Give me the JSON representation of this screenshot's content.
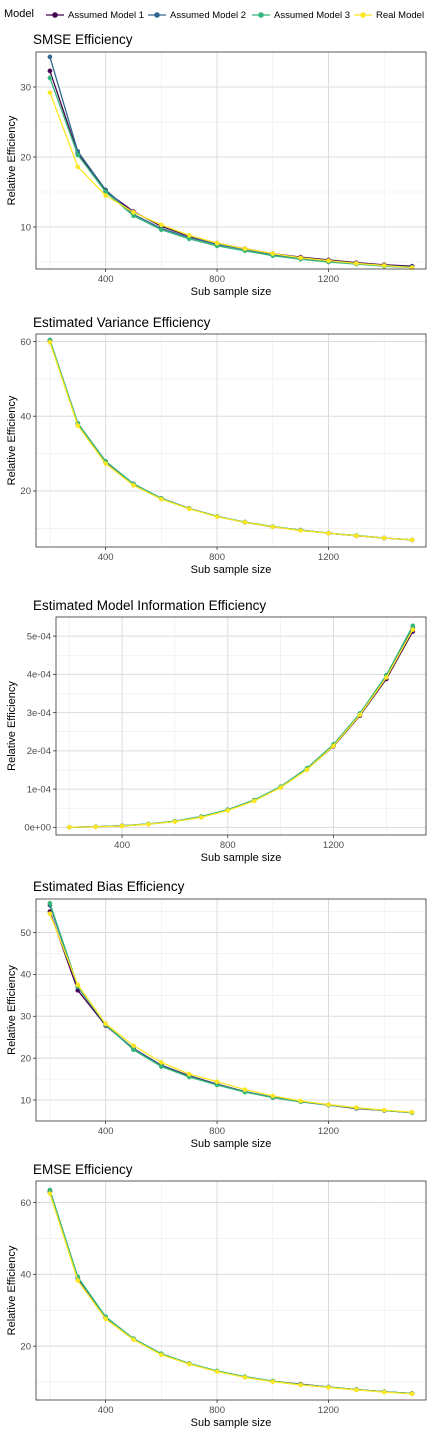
{
  "legend": {
    "title": "Model",
    "items": [
      {
        "label": "Assumed Model 1",
        "color": "#440154"
      },
      {
        "label": "Assumed Model 2",
        "color": "#31688e"
      },
      {
        "label": "Assumed Model 3",
        "color": "#35b779"
      },
      {
        "label": "Real Model",
        "color": "#fde725"
      }
    ]
  },
  "chart_data": [
    {
      "type": "line",
      "title": "SMSE Efficiency",
      "xlabel": "Sub sample size",
      "ylabel": "Relative Efficiency",
      "xlim": [
        150,
        1550
      ],
      "ylim": [
        4,
        35
      ],
      "x_ticks": [
        400,
        800,
        1200
      ],
      "y_ticks": [
        10,
        20,
        30
      ],
      "x_tick_labels": [
        "400",
        "800",
        "1200"
      ],
      "y_tick_labels": [
        "10",
        "20",
        "30"
      ],
      "grid": true,
      "x": [
        200,
        300,
        400,
        500,
        600,
        700,
        800,
        900,
        1000,
        1100,
        1200,
        1300,
        1400,
        1500
      ],
      "series": [
        {
          "name": "Assumed Model 1",
          "values": [
            32.3,
            20.5,
            15.1,
            12.2,
            10.1,
            8.7,
            7.7,
            6.9,
            6.2,
            5.7,
            5.3,
            4.9,
            4.6,
            4.4
          ]
        },
        {
          "name": "Assumed Model 2",
          "values": [
            34.3,
            20.8,
            15.3,
            11.8,
            9.8,
            8.5,
            7.5,
            6.8,
            6.0,
            5.5,
            5.1,
            4.8,
            4.5,
            4.3
          ]
        },
        {
          "name": "Assumed Model 3",
          "values": [
            31.3,
            20.3,
            15.0,
            11.6,
            9.6,
            8.3,
            7.3,
            6.6,
            5.9,
            5.4,
            5.0,
            4.7,
            4.4,
            4.2
          ]
        },
        {
          "name": "Real Model",
          "values": [
            29.2,
            18.6,
            14.5,
            12.1,
            10.3,
            8.8,
            7.7,
            6.9,
            6.2,
            5.6,
            5.2,
            4.8,
            4.5,
            4.2
          ]
        }
      ]
    },
    {
      "type": "line",
      "title": "Estimated Variance Efficiency",
      "xlabel": "Sub sample size",
      "ylabel": "Relative Efficiency",
      "xlim": [
        150,
        1550
      ],
      "ylim": [
        5,
        62
      ],
      "x_ticks": [
        400,
        800,
        1200
      ],
      "y_ticks": [
        20,
        40,
        60
      ],
      "x_tick_labels": [
        "400",
        "800",
        "1200"
      ],
      "y_tick_labels": [
        "20",
        "40",
        "60"
      ],
      "grid": true,
      "x": [
        200,
        300,
        400,
        500,
        600,
        700,
        800,
        900,
        1000,
        1100,
        1200,
        1300,
        1400,
        1500
      ],
      "series": [
        {
          "name": "Assumed Model 1",
          "values": [
            60.2,
            38.0,
            27.8,
            21.8,
            18.0,
            15.3,
            13.2,
            11.6,
            10.4,
            9.5,
            8.7,
            8.0,
            7.4,
            6.9
          ]
        },
        {
          "name": "Assumed Model 2",
          "values": [
            60.3,
            38.1,
            27.9,
            21.9,
            18.0,
            15.3,
            13.2,
            11.6,
            10.4,
            9.5,
            8.7,
            8.0,
            7.4,
            6.9
          ]
        },
        {
          "name": "Assumed Model 3",
          "values": [
            60.4,
            38.1,
            27.9,
            21.9,
            18.0,
            15.3,
            13.2,
            11.7,
            10.5,
            9.5,
            8.7,
            8.1,
            7.4,
            6.9
          ]
        },
        {
          "name": "Real Model",
          "values": [
            59.8,
            37.5,
            27.3,
            21.5,
            17.8,
            15.2,
            13.1,
            11.6,
            10.4,
            9.4,
            8.7,
            8.0,
            7.4,
            6.9
          ]
        }
      ]
    },
    {
      "type": "line",
      "title": "Estimated Model Information Efficiency",
      "xlabel": "Sub sample size",
      "ylabel": "Relative Efficiency",
      "xlim": [
        150,
        1550
      ],
      "ylim": [
        -2e-05,
        0.00055
      ],
      "x_ticks": [
        400,
        800,
        1200
      ],
      "y_ticks": [
        0,
        0.0001,
        0.0002,
        0.0003,
        0.0004,
        0.0005
      ],
      "x_tick_labels": [
        "400",
        "800",
        "1200"
      ],
      "y_tick_labels": [
        "0e+00",
        "1e-04",
        "2e-04",
        "3e-04",
        "4e-04",
        "5e-04"
      ],
      "grid": true,
      "x": [
        200,
        300,
        400,
        500,
        600,
        700,
        800,
        900,
        1000,
        1100,
        1200,
        1300,
        1400,
        1500
      ],
      "series": [
        {
          "name": "Assumed Model 1",
          "values": [
            3e-07,
            1.5e-06,
            4e-06,
            8.5e-06,
            1.55e-05,
            2.7e-05,
            4.5e-05,
            7e-05,
            0.000105,
            0.000152,
            0.000212,
            0.000292,
            0.000388,
            0.000512
          ]
        },
        {
          "name": "Assumed Model 2",
          "values": [
            3e-07,
            1.6e-06,
            4.2e-06,
            8.8e-06,
            1.6e-05,
            2.8e-05,
            4.6e-05,
            7.1e-05,
            0.000106,
            0.000154,
            0.000216,
            0.000297,
            0.000396,
            0.000522
          ]
        },
        {
          "name": "Assumed Model 3",
          "values": [
            3e-07,
            1.6e-06,
            4.3e-06,
            9e-06,
            1.62e-05,
            2.82e-05,
            4.62e-05,
            7.15e-05,
            0.0001065,
            0.000155,
            0.000217,
            0.000298,
            0.000398,
            0.000527
          ]
        },
        {
          "name": "Real Model",
          "values": [
            2e-07,
            1.2e-06,
            3.5e-06,
            8e-06,
            1.5e-05,
            2.6e-05,
            4.4e-05,
            6.9e-05,
            0.000104,
            0.000151,
            0.000213,
            0.000294,
            0.000392,
            0.000517
          ]
        }
      ]
    },
    {
      "type": "line",
      "title": "Estimated Bias Efficiency",
      "xlabel": "Sub sample size",
      "ylabel": "Relative Efficiency",
      "xlim": [
        150,
        1550
      ],
      "ylim": [
        5,
        58
      ],
      "x_ticks": [
        400,
        800,
        1200
      ],
      "y_ticks": [
        10,
        20,
        30,
        40,
        50
      ],
      "x_tick_labels": [
        "400",
        "800",
        "1200"
      ],
      "y_tick_labels": [
        "10",
        "20",
        "30",
        "40",
        "50"
      ],
      "grid": true,
      "x": [
        200,
        300,
        400,
        500,
        600,
        700,
        800,
        900,
        1000,
        1100,
        1200,
        1300,
        1400,
        1500
      ],
      "series": [
        {
          "name": "Assumed Model 1",
          "values": [
            55.0,
            36.2,
            27.8,
            22.3,
            18.3,
            15.8,
            13.8,
            12.0,
            10.6,
            9.6,
            8.8,
            8.0,
            7.5,
            7.0
          ]
        },
        {
          "name": "Assumed Model 2",
          "values": [
            56.5,
            37.0,
            28.0,
            22.2,
            18.2,
            15.7,
            13.7,
            12.0,
            10.7,
            9.7,
            8.9,
            8.1,
            7.5,
            7.0
          ]
        },
        {
          "name": "Assumed Model 3",
          "values": [
            57.0,
            37.2,
            28.0,
            22.0,
            18.0,
            15.5,
            13.6,
            11.9,
            10.6,
            9.6,
            8.8,
            8.1,
            7.5,
            7.0
          ]
        },
        {
          "name": "Real Model",
          "values": [
            54.5,
            37.5,
            28.2,
            23.0,
            19.0,
            16.2,
            14.4,
            12.5,
            11.0,
            9.8,
            8.9,
            8.2,
            7.6,
            7.1
          ]
        }
      ]
    },
    {
      "type": "line",
      "title": "EMSE Efficiency",
      "xlabel": "Sub sample size",
      "ylabel": "Relative Efficiency",
      "xlim": [
        150,
        1550
      ],
      "ylim": [
        5,
        66
      ],
      "x_ticks": [
        400,
        800,
        1200
      ],
      "y_ticks": [
        20,
        40,
        60
      ],
      "x_tick_labels": [
        "400",
        "800",
        "1200"
      ],
      "y_tick_labels": [
        "20",
        "40",
        "60"
      ],
      "grid": true,
      "x": [
        200,
        300,
        400,
        500,
        600,
        700,
        800,
        900,
        1000,
        1100,
        1200,
        1300,
        1400,
        1500
      ],
      "series": [
        {
          "name": "Assumed Model 1",
          "values": [
            63.0,
            38.8,
            28.0,
            22.0,
            17.8,
            15.1,
            13.0,
            11.4,
            10.2,
            9.4,
            8.6,
            7.9,
            7.3,
            6.8
          ]
        },
        {
          "name": "Assumed Model 2",
          "values": [
            63.2,
            39.0,
            28.1,
            22.0,
            17.8,
            15.1,
            13.0,
            11.4,
            10.2,
            9.3,
            8.6,
            7.9,
            7.3,
            6.8
          ]
        },
        {
          "name": "Assumed Model 3",
          "values": [
            63.5,
            39.3,
            28.2,
            22.1,
            17.9,
            15.2,
            13.1,
            11.5,
            10.3,
            9.3,
            8.6,
            7.9,
            7.3,
            6.8
          ]
        },
        {
          "name": "Real Model",
          "values": [
            62.5,
            38.3,
            27.6,
            21.8,
            17.6,
            15.0,
            12.9,
            11.3,
            10.1,
            9.2,
            8.5,
            7.8,
            7.2,
            6.7
          ]
        }
      ]
    }
  ]
}
